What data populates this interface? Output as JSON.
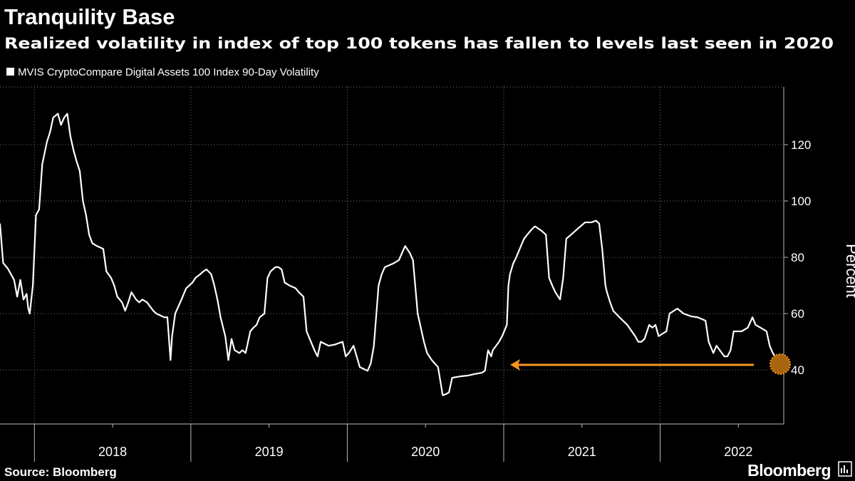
{
  "chart_data": {
    "type": "line",
    "title": "Tranquility Base",
    "subtitle": "Realized volatility in index of top 100 tokens has fallen to levels last seen in 2020",
    "y_label": "Percent",
    "source": "Source: Bloomberg",
    "logo": "Bloomberg",
    "x": [
      2017.78,
      2017.8,
      2017.83,
      2017.85,
      2017.87,
      2017.89,
      2017.91,
      2017.93,
      2017.95,
      2017.96,
      2017.97,
      2017.99,
      2018.01,
      2018.03,
      2018.05,
      2018.08,
      2018.1,
      2018.12,
      2018.15,
      2018.17,
      2018.19,
      2018.21,
      2018.23,
      2018.25,
      2018.27,
      2018.29,
      2018.31,
      2018.33,
      2018.35,
      2018.37,
      2018.4,
      2018.44,
      2018.46,
      2018.49,
      2018.51,
      2018.53,
      2018.56,
      2018.58,
      2018.6,
      2018.62,
      2018.65,
      2018.67,
      2018.69,
      2018.72,
      2018.74,
      2018.76,
      2018.78,
      2018.83,
      2018.85,
      2018.87,
      2018.88,
      2018.9,
      2018.92,
      2018.94,
      2018.97,
      2018.99,
      2019.01,
      2019.03,
      2019.06,
      2019.08,
      2019.1,
      2019.13,
      2019.15,
      2019.17,
      2019.19,
      2019.22,
      2019.24,
      2019.26,
      2019.28,
      2019.31,
      2019.33,
      2019.35,
      2019.38,
      2019.4,
      2019.42,
      2019.44,
      2019.47,
      2019.49,
      2019.51,
      2019.54,
      2019.56,
      2019.58,
      2019.6,
      2019.63,
      2019.67,
      2019.69,
      2019.72,
      2019.74,
      2019.76,
      2019.79,
      2019.81,
      2019.83,
      2019.88,
      2019.92,
      2019.97,
      2019.99,
      2020.01,
      2020.04,
      2020.06,
      2020.08,
      2020.13,
      2020.15,
      2020.17,
      2020.2,
      2020.22,
      2020.24,
      2020.29,
      2020.33,
      2020.36,
      2020.37,
      2020.4,
      2020.42,
      2020.45,
      2020.47,
      2020.49,
      2020.51,
      2020.54,
      2020.58,
      2020.61,
      2020.63,
      2020.65,
      2020.67,
      2020.72,
      2020.77,
      2020.81,
      2020.86,
      2020.88,
      2020.9,
      2020.92,
      2020.93,
      2020.97,
      2020.99,
      2021.02,
      2021.03,
      2021.04,
      2021.06,
      2021.08,
      2021.11,
      2021.13,
      2021.15,
      2021.18,
      2021.2,
      2021.24,
      2021.27,
      2021.29,
      2021.31,
      2021.33,
      2021.36,
      2021.38,
      2021.4,
      2021.43,
      2021.47,
      2021.52,
      2021.56,
      2021.59,
      2021.61,
      2021.63,
      2021.65,
      2021.66,
      2021.68,
      2021.7,
      2021.74,
      2021.79,
      2021.84,
      2021.86,
      2021.88,
      2021.9,
      2021.93,
      2021.95,
      2021.97,
      2021.99,
      2022.04,
      2022.06,
      2022.11,
      2022.15,
      2022.2,
      2022.24,
      2022.29,
      2022.31,
      2022.34,
      2022.36,
      2022.41,
      2022.43,
      2022.45,
      2022.47,
      2022.52,
      2022.56,
      2022.59,
      2022.61,
      2022.66,
      2022.68,
      2022.7,
      2022.72,
      2022.75,
      2022.77
    ],
    "series": [
      {
        "name": "MVIS CryptoCompare Digital Assets 100 Index 90-Day Volatility",
        "color": "#ffffff",
        "values": [
          92,
          78,
          76,
          74,
          72,
          66,
          72,
          65,
          67,
          62,
          60,
          70,
          95,
          97,
          113,
          121,
          124.5,
          129.6,
          131,
          127,
          129.6,
          131,
          123,
          118,
          114,
          110.6,
          100,
          95,
          88,
          85,
          84,
          83,
          75,
          72.7,
          70,
          66,
          64,
          61,
          64,
          67.6,
          65,
          64,
          65,
          64,
          62.5,
          61,
          60,
          58.7,
          58.7,
          43.5,
          52,
          60,
          62.5,
          65,
          69,
          70,
          71,
          72.7,
          74,
          75,
          75.7,
          74,
          70,
          65,
          58.7,
          52,
          43.5,
          51,
          47,
          46,
          47,
          46,
          53.7,
          55,
          56,
          58.7,
          60,
          72.7,
          75,
          76.5,
          76.5,
          75.7,
          71,
          70,
          69,
          67.6,
          66,
          53.7,
          51,
          47,
          44.8,
          50,
          48.6,
          49,
          50,
          44.8,
          46,
          48.6,
          44.8,
          41,
          39.7,
          42.3,
          48.6,
          70,
          74,
          76.5,
          77.7,
          79,
          82.8,
          84,
          81.5,
          79,
          60,
          55,
          50,
          46,
          43.5,
          41,
          31,
          31.4,
          32,
          37.2,
          37.7,
          38,
          38.5,
          39,
          39.7,
          47,
          44.8,
          47,
          50,
          52,
          56,
          70,
          74,
          77.7,
          80,
          84,
          86.6,
          88,
          90,
          91,
          89.5,
          88,
          72.7,
          70,
          67.6,
          65,
          72.7,
          86.6,
          88,
          90,
          92.4,
          92.4,
          93,
          92,
          82.8,
          70,
          67.6,
          64,
          61,
          58.7,
          56,
          52,
          50,
          50,
          51,
          56,
          55,
          56,
          52,
          53.7,
          60,
          61.8,
          60,
          59,
          58.7,
          57.5,
          50,
          46,
          48.6,
          44.8,
          44.8,
          47,
          53.7,
          53.7,
          55,
          58.7,
          56,
          54.4,
          53.7,
          48.6,
          46,
          43.5,
          41
        ]
      }
    ],
    "xlim": [
      2017.78,
      2022.79
    ],
    "xticks": [
      {
        "value": 2018,
        "label": "2018"
      },
      {
        "value": 2019,
        "label": "2019"
      },
      {
        "value": 2020,
        "label": "2020"
      },
      {
        "value": 2021,
        "label": "2021"
      },
      {
        "value": 2022,
        "label": "2022"
      }
    ],
    "ylim": [
      20.8,
      140.5
    ],
    "yticks": [
      40,
      60,
      80,
      100,
      120
    ],
    "grid": true
  }
}
